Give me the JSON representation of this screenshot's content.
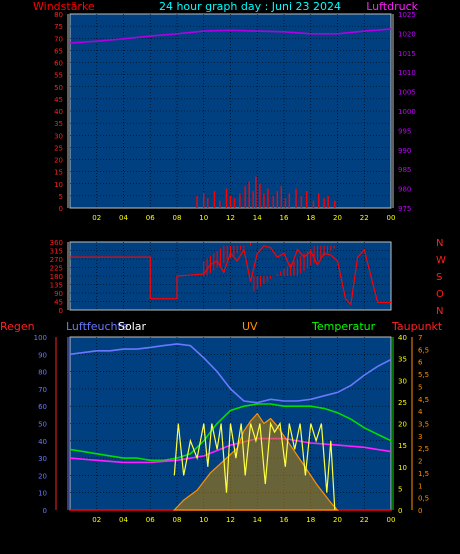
{
  "header": {
    "left_label": "Windstärke",
    "title": "24 hour graph day : Juni 23 2024",
    "right_label": "Luftdruck"
  },
  "colors": {
    "plot_bg": "#004080",
    "grid": "#000000",
    "wind": "#ff0000",
    "pressure": "#b000e0",
    "direction": "#ff0000",
    "humidity": "#6a78ff",
    "solar": "#ffff40",
    "uv": "#ff9000",
    "temperature": "#00dd00",
    "dewpoint": "#ff20ff",
    "rain": "#ff0000"
  },
  "chart_data": [
    {
      "type": "bar",
      "name": "wind-pressure",
      "x_ticks": [
        "02",
        "04",
        "06",
        "08",
        "10",
        "12",
        "14",
        "16",
        "18",
        "20",
        "22",
        "00"
      ],
      "left_axis": {
        "label": "Windstärke",
        "ticks": [
          "80",
          "75",
          "70",
          "65",
          "60",
          "55",
          "50",
          "45",
          "40",
          "35",
          "30",
          "25",
          "20",
          "15",
          "10",
          "5",
          "0"
        ],
        "ylim": [
          0,
          80
        ]
      },
      "right_axis": {
        "label": "Luftdruck",
        "ticks": [
          "1025",
          "1020",
          "1015",
          "1010",
          "1005",
          "1000",
          "995",
          "990",
          "985",
          "980",
          "975"
        ],
        "ylim": [
          975,
          1025
        ]
      },
      "pressure": {
        "x": [
          0,
          2,
          4,
          6,
          8,
          10,
          12,
          14,
          16,
          18,
          20,
          22,
          24
        ],
        "y": [
          1017.5,
          1018.0,
          1018.6,
          1019.3,
          1019.9,
          1020.6,
          1020.8,
          1020.6,
          1020.4,
          1019.9,
          1019.9,
          1020.6,
          1021.1
        ]
      },
      "wind_gusts": {
        "x": [
          9.5,
          10.0,
          10.3,
          10.8,
          11.2,
          11.7,
          12.0,
          12.3,
          12.7,
          13.1,
          13.4,
          13.7,
          13.9,
          14.2,
          14.5,
          14.8,
          15.2,
          15.5,
          15.8,
          16.1,
          16.4,
          16.9,
          17.3,
          17.7,
          18.2,
          18.6,
          19.0,
          19.3,
          19.8
        ],
        "y": [
          5,
          6,
          4,
          7,
          3,
          8,
          5,
          4,
          6,
          9,
          11,
          7,
          13,
          10,
          6,
          8,
          5,
          7,
          9,
          4,
          6,
          8,
          5,
          7,
          3,
          6,
          4,
          5,
          3
        ]
      }
    },
    {
      "type": "line",
      "name": "wind-direction",
      "left_axis": {
        "ticks": [
          "360",
          "315",
          "270",
          "225",
          "180",
          "135",
          "90",
          "45",
          "0"
        ],
        "ylim": [
          0,
          360
        ]
      },
      "right_axis": {
        "ticks": [
          "N",
          "W",
          "S",
          "O",
          "N"
        ]
      },
      "direction": {
        "x": [
          0,
          6.0,
          6.0,
          8.0,
          8.0,
          10.0,
          10.5,
          11.0,
          11.5,
          12.0,
          12.5,
          13.0,
          13.5,
          14.0,
          14.5,
          15.0,
          15.5,
          16.0,
          16.5,
          17.0,
          17.5,
          18.0,
          18.5,
          19.0,
          19.5,
          20.0,
          20.6,
          21.0,
          21.5,
          22.0,
          22.5,
          23.0,
          23.5,
          24.0
        ],
        "y": [
          280,
          280,
          60,
          60,
          180,
          190,
          240,
          260,
          200,
          300,
          260,
          320,
          150,
          300,
          340,
          330,
          280,
          300,
          220,
          320,
          280,
          310,
          240,
          300,
          290,
          260,
          60,
          30,
          280,
          320,
          180,
          40,
          40,
          40
        ]
      }
    },
    {
      "type": "line",
      "name": "multi",
      "labels": {
        "regen": "Regen",
        "luftfeuchte": "Luftfeuchte",
        "solar": "Solar",
        "uv": "UV",
        "temperatur": "Temperatur",
        "taupunkt": "Taupunkt"
      },
      "left_axis": {
        "ticks": [
          "100",
          "90",
          "80",
          "70",
          "60",
          "50",
          "40",
          "30",
          "20",
          "10",
          "0"
        ],
        "ylim": [
          0,
          100
        ]
      },
      "right_axis_temp": {
        "ticks": [
          "40",
          "35",
          "30",
          "25",
          "20",
          "15",
          "10",
          "5",
          "0"
        ],
        "ylim": [
          0,
          40
        ]
      },
      "right_axis_uv": {
        "ticks": [
          "7",
          "6,5",
          "6",
          "5,5",
          "5",
          "4,5",
          "4",
          "3,5",
          "3",
          "2,5",
          "2",
          "1,5",
          "1",
          "0,5",
          "0"
        ],
        "ylim": [
          0,
          7
        ]
      },
      "humidity": {
        "x": [
          0,
          1,
          2,
          3,
          4,
          5,
          6,
          7,
          8,
          9,
          10,
          11,
          12,
          13,
          14,
          15,
          16,
          17,
          18,
          19,
          20,
          21,
          22,
          23,
          24
        ],
        "y": [
          90,
          91,
          92,
          92,
          93,
          93,
          94,
          95,
          96,
          95,
          88,
          80,
          70,
          63,
          62,
          64,
          63,
          63,
          64,
          66,
          68,
          72,
          78,
          83,
          87
        ]
      },
      "temperature": {
        "x": [
          0,
          1,
          2,
          3,
          4,
          5,
          6,
          7,
          8,
          9,
          10,
          11,
          12,
          13,
          14,
          15,
          16,
          17,
          18,
          19,
          20,
          21,
          22,
          23,
          24
        ],
        "y": [
          14,
          13.5,
          13,
          12.5,
          12,
          12,
          11.5,
          11.5,
          12,
          13,
          16,
          20,
          23,
          24,
          24.5,
          24.5,
          24,
          24,
          24,
          23.5,
          22.5,
          21,
          19,
          17.5,
          16
        ]
      },
      "dewpoint": {
        "x": [
          0,
          2,
          4,
          6,
          8,
          10,
          12,
          14,
          16,
          18,
          20,
          22,
          24
        ],
        "y": [
          12,
          11.5,
          11,
          11,
          11.5,
          12.5,
          15,
          16.5,
          16.5,
          15.5,
          15,
          14.5,
          13.5
        ]
      },
      "solar": {
        "x": [
          7.8,
          8.1,
          8.5,
          9.0,
          9.5,
          10.0,
          10.3,
          10.6,
          11.0,
          11.3,
          11.7,
          12.0,
          12.4,
          12.8,
          13.1,
          13.5,
          13.9,
          14.2,
          14.6,
          15.0,
          15.3,
          15.7,
          16.1,
          16.4,
          16.8,
          17.2,
          17.6,
          18.0,
          18.4,
          18.8,
          19.2,
          19.5,
          19.8
        ],
        "y": [
          20,
          50,
          20,
          40,
          30,
          50,
          25,
          50,
          35,
          50,
          10,
          50,
          30,
          50,
          20,
          50,
          40,
          50,
          15,
          50,
          45,
          50,
          25,
          50,
          35,
          50,
          20,
          50,
          40,
          50,
          10,
          40,
          0
        ]
      },
      "uv": {
        "x": [
          7.8,
          8.5,
          9.5,
          10.5,
          11.5,
          12.5,
          13.0,
          13.5,
          14.0,
          14.5,
          15.0,
          15.5,
          16.0,
          16.5,
          17.5,
          18.5,
          19.5,
          20.0
        ],
        "y": [
          0,
          0.4,
          0.8,
          1.5,
          2.0,
          2.5,
          3.2,
          3.6,
          3.9,
          3.5,
          3.7,
          3.4,
          3.0,
          2.6,
          1.8,
          1.0,
          0.3,
          0
        ]
      },
      "rain": {
        "x": [
          0,
          24
        ],
        "y": [
          0,
          0
        ]
      }
    }
  ]
}
